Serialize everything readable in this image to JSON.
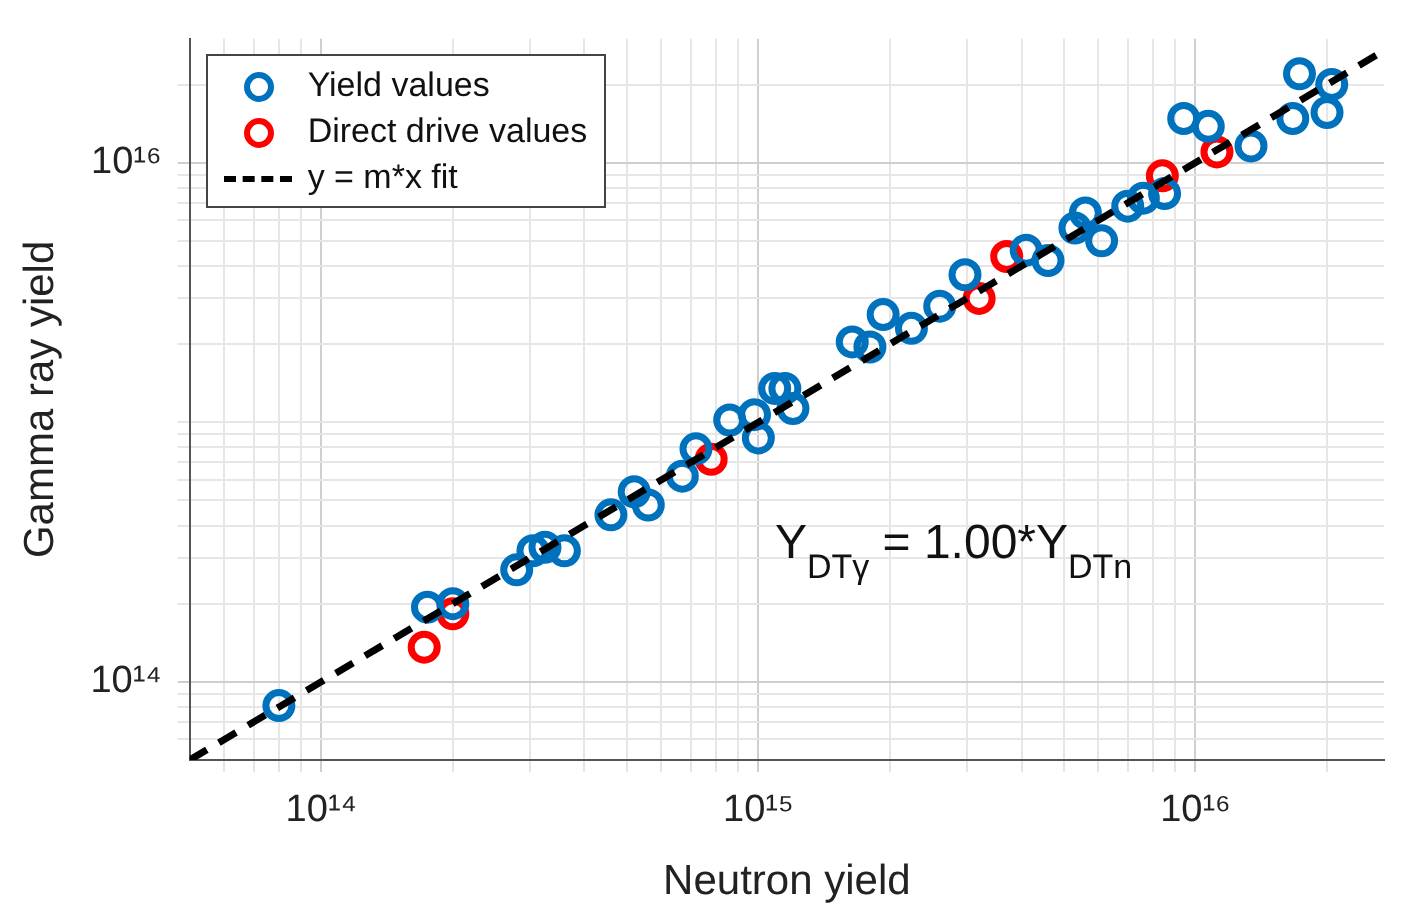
{
  "chart_data": {
    "type": "scatter",
    "xlabel": "Neutron yield",
    "ylabel": "Gamma ray yield",
    "log": "xy",
    "grid": true,
    "legend": "top left",
    "marker": "circle",
    "xlim": [
      50000000000000.0,
      2.7e+16
    ],
    "ylim": [
      50000000000000.0,
      3e+16
    ],
    "xticks": [
      {
        "value": 60000000000000.0,
        "label": null
      },
      {
        "value": 70000000000000.0,
        "label": null
      },
      {
        "value": 80000000000000.0,
        "label": null
      },
      {
        "value": 90000000000000.0,
        "label": null
      },
      {
        "value": 100000000000000.0,
        "label": "10¹⁴"
      },
      {
        "value": 200000000000000.0,
        "label": null
      },
      {
        "value": 300000000000000.0,
        "label": null
      },
      {
        "value": 400000000000000.0,
        "label": null
      },
      {
        "value": 500000000000000.0,
        "label": null
      },
      {
        "value": 600000000000000.0,
        "label": null
      },
      {
        "value": 700000000000000.0,
        "label": null
      },
      {
        "value": 800000000000000.0,
        "label": null
      },
      {
        "value": 900000000000000.0,
        "label": null
      },
      {
        "value": 1000000000000000.0,
        "label": "10¹⁵"
      },
      {
        "value": 2000000000000000.0,
        "label": null
      },
      {
        "value": 3000000000000000.0,
        "label": null
      },
      {
        "value": 4000000000000000.0,
        "label": null
      },
      {
        "value": 5000000000000000.0,
        "label": null
      },
      {
        "value": 6000000000000000.0,
        "label": null
      },
      {
        "value": 7000000000000000.0,
        "label": null
      },
      {
        "value": 8000000000000000.0,
        "label": null
      },
      {
        "value": 9000000000000000.0,
        "label": null
      },
      {
        "value": 1e+16,
        "label": "10¹⁶"
      },
      {
        "value": 2e+16,
        "label": null
      }
    ],
    "yticks": [
      {
        "value": 60000000000000.0,
        "label": null
      },
      {
        "value": 70000000000000.0,
        "label": null
      },
      {
        "value": 80000000000000.0,
        "label": null
      },
      {
        "value": 90000000000000.0,
        "label": null
      },
      {
        "value": 100000000000000.0,
        "label": "10¹⁴"
      },
      {
        "value": 200000000000000.0,
        "label": null
      },
      {
        "value": 300000000000000.0,
        "label": null
      },
      {
        "value": 400000000000000.0,
        "label": null
      },
      {
        "value": 500000000000000.0,
        "label": null
      },
      {
        "value": 600000000000000.0,
        "label": null
      },
      {
        "value": 700000000000000.0,
        "label": null
      },
      {
        "value": 800000000000000.0,
        "label": null
      },
      {
        "value": 900000000000000.0,
        "label": null
      },
      {
        "value": 1000000000000000.0,
        "label": null
      },
      {
        "value": 2000000000000000.0,
        "label": null
      },
      {
        "value": 3000000000000000.0,
        "label": null
      },
      {
        "value": 4000000000000000.0,
        "label": null
      },
      {
        "value": 5000000000000000.0,
        "label": null
      },
      {
        "value": 6000000000000000.0,
        "label": null
      },
      {
        "value": 7000000000000000.0,
        "label": null
      },
      {
        "value": 8000000000000000.0,
        "label": null
      },
      {
        "value": 9000000000000000.0,
        "label": null
      },
      {
        "value": 1e+16,
        "label": "10¹⁶"
      },
      {
        "value": 2e+16,
        "label": null
      }
    ],
    "annotations": [
      "Y$_{DTγ}$ = 1.00*Y$_{DTn}$"
    ],
    "series": [
      {
        "name": "Yield values",
        "color": "#0072bd",
        "x": [
          80000000000000.0,
          175000000000000.0,
          200000000000000.0,
          280000000000000.0,
          305000000000000.0,
          325000000000000.0,
          360000000000000.0,
          460000000000000.0,
          520000000000000.0,
          560000000000000.0,
          670000000000000.0,
          720000000000000.0,
          860000000000000.0,
          1000000000000000.0,
          1090000000000000.0,
          980000000000000.0,
          1150000000000000.0,
          1200000000000000.0,
          1640000000000000.0,
          1800000000000000.0,
          1930000000000000.0,
          2240000000000000.0,
          2600000000000000.0,
          2970000000000000.0,
          4100000000000000.0,
          4600000000000000.0,
          5300000000000000.0,
          5600000000000000.0,
          6100000000000000.0,
          7000000000000000.0,
          7600000000000000.0,
          8500000000000000.0,
          9400000000000000.0,
          1.07e+16,
          1.34e+16,
          1.67e+16,
          1.73e+16,
          2e+16,
          2.05e+16
        ],
        "values": [
          81000000000000.0,
          194000000000000.0,
          200000000000000.0,
          270000000000000.0,
          320000000000000.0,
          330000000000000.0,
          320000000000000.0,
          440000000000000.0,
          540000000000000.0,
          480000000000000.0,
          620000000000000.0,
          790000000000000.0,
          1020000000000000.0,
          870000000000000.0,
          1350000000000000.0,
          1070000000000000.0,
          1350000000000000.0,
          1130000000000000.0,
          2040000000000000.0,
          1950000000000000.0,
          2600000000000000.0,
          2300000000000000.0,
          2800000000000000.0,
          3700000000000000.0,
          4600000000000000.0,
          4200000000000000.0,
          5600000000000000.0,
          6400000000000000.0,
          5000000000000000.0,
          6800000000000000.0,
          7300000000000000.0,
          7600000000000000.0,
          1.48e+16,
          1.38e+16,
          1.16e+16,
          1.48e+16,
          2.2e+16,
          1.56e+16,
          2e+16
        ]
      },
      {
        "name": "Direct drive values",
        "color": "#ff0000",
        "x": [
          172000000000000.0,
          200000000000000.0,
          730000000000000.0,
          780000000000000.0,
          3200000000000000.0,
          3700000000000000.0,
          8400000000000000.0,
          1.12e+16
        ],
        "values": [
          136000000000000.0,
          183000000000000.0,
          null,
          720000000000000.0,
          3000000000000000.0,
          4350000000000000.0,
          8900000000000000.0,
          1.1e+16
        ]
      },
      {
        "name": "y = m*x fit",
        "type": "line",
        "line_style": "dashed",
        "marker": "none",
        "color": "#000000",
        "x": [
          50000000000000.0,
          2.7e+16
        ],
        "values": [
          50000000000000.0,
          2.7e+16
        ]
      }
    ]
  }
}
